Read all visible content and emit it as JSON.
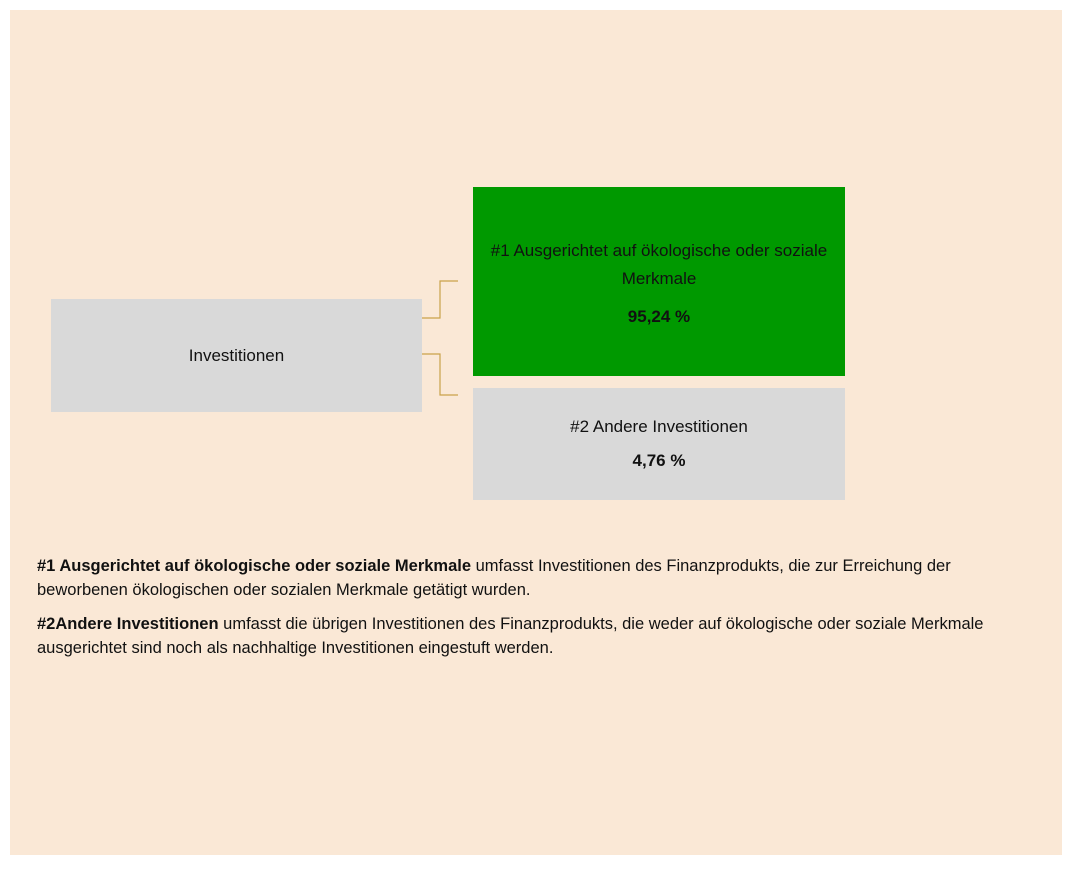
{
  "diagram": {
    "root": {
      "label": "Investitionen"
    },
    "children": [
      {
        "label": "#1 Ausgerichtet auf ökologische oder soziale Merkmale",
        "value": "95,24 %"
      },
      {
        "label": "#2 Andere Investitionen",
        "value": "4,76 %"
      }
    ]
  },
  "definitions": [
    {
      "term": "#1 Ausgerichtet auf ökologische oder soziale Merkmale",
      "text": "umfasst Investitionen des Finanzprodukts, die zur Erreichung der beworbenen ökologischen oder sozialen Merkmale getätigt wurden."
    },
    {
      "term": "#2Andere Investitionen",
      "text": "umfasst die übrigen Investitionen des Finanzprodukts, die weder auf ökologische oder soziale Merkmale ausgerichtet sind noch als nachhaltige Investitionen eingestuft werden."
    }
  ]
}
